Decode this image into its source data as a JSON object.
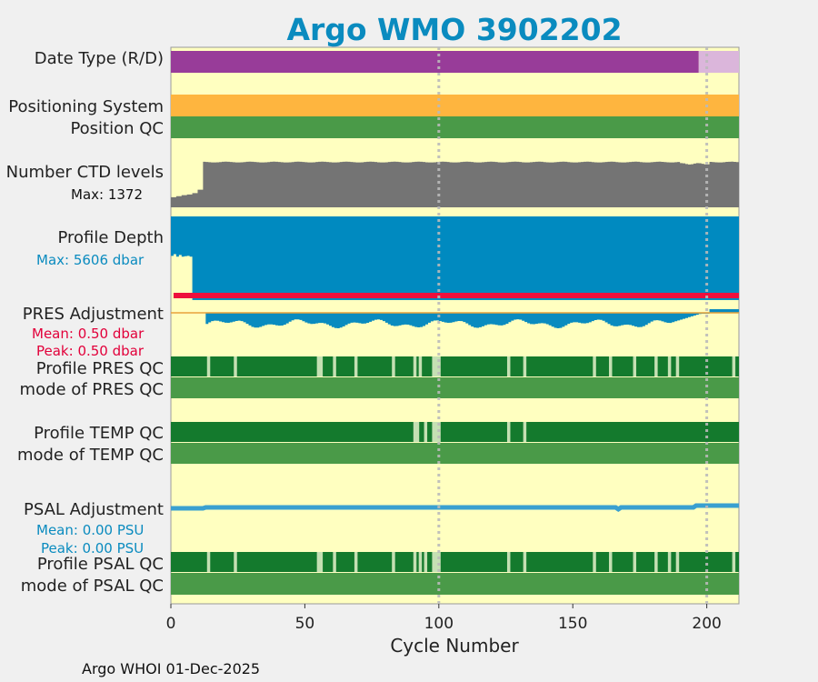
{
  "title": "Argo WMO 3902202",
  "footer": "Argo WHOI 01-Dec-2025",
  "colors": {
    "background": "#f0f0f0",
    "plot_bg": "#ffffc0",
    "title": "#0a8bbf",
    "date_real": "#983c99",
    "date_delayed": "#dbb6db",
    "positioning": "#feb53f",
    "position_qc": "#4a9a48",
    "ctd_levels": "#747474",
    "profile_depth": "#008ac0",
    "pres_adj_line": "#ee0f3c",
    "pres_adj_fill": "#0a8bbf",
    "qc_dark": "#147a2d",
    "qc_light": "#c5e0b3",
    "mode_qc": "#4a9a48",
    "psal_adj": "#3aa0d0",
    "grid": "#bbbbbb",
    "annot_blue": "#0a8bbf",
    "annot_red": "#e2003a"
  },
  "labels": {
    "date_type": "Date Type (R/D)",
    "positioning_system": "Positioning System",
    "position_qc": "Position QC",
    "ctd_levels": "Number CTD levels",
    "ctd_max": "Max: 1372",
    "profile_depth": "Profile Depth",
    "depth_max": "Max: 5606 dbar",
    "pres_adjustment": "PRES Adjustment",
    "pres_mean": "Mean: 0.50 dbar",
    "pres_peak": "Peak: 0.50 dbar",
    "profile_pres_qc": "Profile PRES QC",
    "mode_pres_qc": "mode of PRES QC",
    "profile_temp_qc": "Profile TEMP QC",
    "mode_temp_qc": "mode of TEMP QC",
    "psal_adjustment": "PSAL Adjustment",
    "psal_mean": "Mean: 0.00 PSU",
    "psal_peak": "Peak: 0.00 PSU",
    "profile_psal_qc": "Profile PSAL QC",
    "mode_psal_qc": "mode of PSAL QC"
  },
  "chart_data": {
    "type": "bar",
    "title": "Argo WMO 3902202",
    "xlabel": "Cycle Number",
    "xlim": [
      0,
      212
    ],
    "xticks": [
      "0",
      "50",
      "100",
      "150",
      "200"
    ],
    "grid_x": [
      100,
      200
    ],
    "cycles_total": 212,
    "date_type": {
      "realtime_until": 197
    },
    "ctd_levels": {
      "max": 1372,
      "ramp": [
        [
          0,
          300
        ],
        [
          2,
          330
        ],
        [
          4,
          360
        ],
        [
          6,
          380
        ],
        [
          8,
          420
        ],
        [
          10,
          520
        ],
        [
          12,
          1330
        ]
      ],
      "plateau": 1340,
      "dip_range": [
        190,
        200
      ],
      "dip_value": 1290
    },
    "profile_depth_dbar": {
      "max": 5606,
      "shallow_cycles": [
        [
          0,
          4800
        ],
        [
          1,
          4600
        ],
        [
          2,
          4900
        ],
        [
          3,
          4700
        ],
        [
          4,
          4900
        ],
        [
          5,
          4850
        ],
        [
          6,
          4800
        ],
        [
          7,
          4900
        ]
      ],
      "full_depth_from": 8
    },
    "pres_adjustment": {
      "mean": 0.5,
      "peak": 0.5,
      "start_cycle": 1,
      "offset_start_cycle": 13
    },
    "psal_adjustment": {
      "mean": 0.0,
      "peak": 0.0
    },
    "pres_qc_flagged_cycles": [
      14,
      24,
      55,
      56,
      61,
      69,
      83,
      91,
      93,
      98,
      99,
      100,
      126,
      132,
      158,
      164,
      173,
      181,
      186,
      189,
      210
    ],
    "temp_qc_flagged_cycles": [
      91,
      92,
      95,
      98,
      99,
      100,
      126,
      132
    ],
    "psal_qc_flagged_cycles": [
      14,
      24,
      55,
      56,
      61,
      69,
      83,
      91,
      93,
      95,
      98,
      99,
      100,
      126,
      132,
      158,
      164,
      173,
      181,
      186,
      189,
      210
    ]
  }
}
